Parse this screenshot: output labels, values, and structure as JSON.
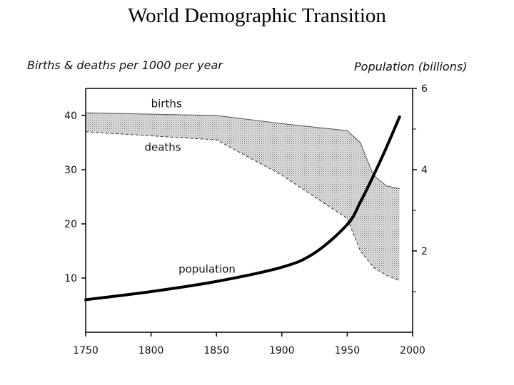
{
  "title": "World Demographic Transition",
  "chart_data": {
    "type": "line",
    "title": "World Demographic Transition",
    "xlabel": "",
    "ylabel": "Births & deaths per 1000 per year",
    "y2label": "Population (billions)",
    "xlim": [
      1750,
      2000
    ],
    "ylim": [
      0,
      45
    ],
    "y2lim": [
      0,
      6
    ],
    "x_ticks": [
      1750,
      1800,
      1850,
      1900,
      1950,
      2000
    ],
    "y_ticks": [
      10,
      20,
      30,
      40
    ],
    "y2_ticks": [
      2,
      4,
      6
    ],
    "grid": false,
    "series": [
      {
        "name": "births",
        "axis": "left",
        "x": [
          1750,
          1850,
          1900,
          1950,
          1960,
          1970,
          1980,
          1990
        ],
        "values": [
          40.5,
          40,
          38.5,
          37.2,
          35,
          29,
          27,
          26.5
        ]
      },
      {
        "name": "deaths",
        "axis": "left",
        "x": [
          1750,
          1850,
          1900,
          1950,
          1960,
          1970,
          1980,
          1990
        ],
        "values": [
          37,
          35.5,
          29,
          21,
          15,
          12,
          10.5,
          9.5
        ]
      },
      {
        "name": "population",
        "axis": "right",
        "x": [
          1750,
          1800,
          1850,
          1900,
          1925,
          1950,
          1960,
          1970,
          1980,
          1990
        ],
        "values": [
          0.8,
          1.0,
          1.25,
          1.6,
          1.95,
          2.65,
          3.2,
          3.85,
          4.55,
          5.3
        ]
      }
    ]
  }
}
